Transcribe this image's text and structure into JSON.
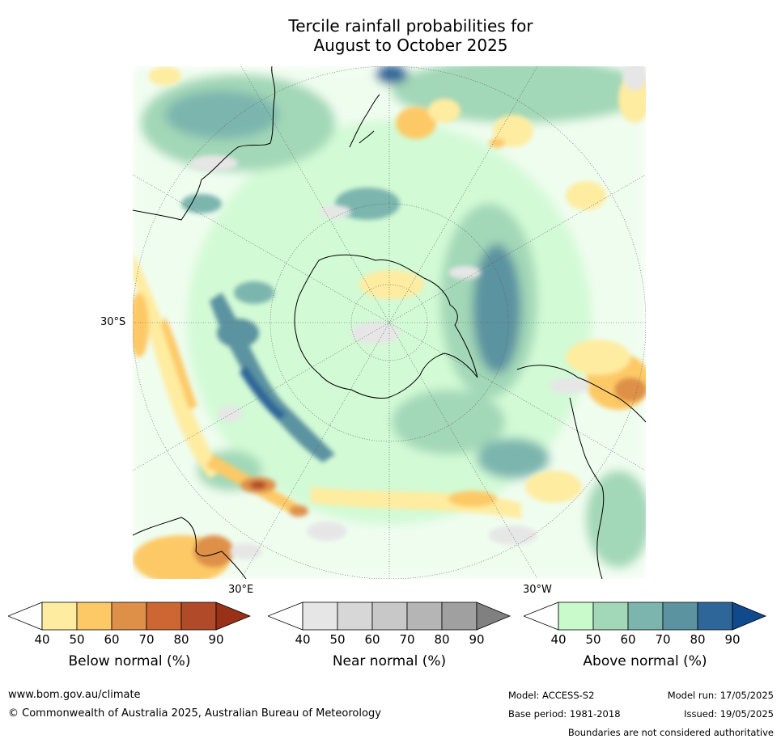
{
  "title": {
    "line1": "Tercile rainfall probabilities for",
    "line2": "August to October 2025"
  },
  "map": {
    "projection": "south-polar-stereographic",
    "lat_label": "30°S",
    "lon_labels": {
      "east": "30°E",
      "west": "30°W"
    }
  },
  "colorbars": [
    {
      "name": "below",
      "label": "Below normal (%)",
      "ticks": [
        "40",
        "50",
        "60",
        "70",
        "80",
        "90"
      ],
      "colors": [
        "#ffffff",
        "#feeca0",
        "#fdc966",
        "#de9048",
        "#cc6633",
        "#b04a29",
        "#993018"
      ]
    },
    {
      "name": "near",
      "label": "Near normal (%)",
      "ticks": [
        "40",
        "50",
        "60",
        "70",
        "80",
        "90"
      ],
      "colors": [
        "#ffffff",
        "#e6e6e6",
        "#d7d7d7",
        "#c8c8c8",
        "#b5b5b5",
        "#a0a0a0",
        "#808080"
      ]
    },
    {
      "name": "above",
      "label": "Above normal (%)",
      "ticks": [
        "40",
        "50",
        "60",
        "70",
        "80",
        "90"
      ],
      "colors": [
        "#ffffff",
        "#c8facc",
        "#a2d7b7",
        "#7cb5ae",
        "#5b93a0",
        "#2f6699",
        "#104a8c"
      ]
    }
  ],
  "footer": {
    "website": "www.bom.gov.au/climate",
    "copyright": "© Commonwealth of Australia 2025, Australian Bureau of Meteorology",
    "model": "Model: ACCESS-S2",
    "base_period": "Base period: 1981-2018",
    "model_run": "Model run: 17/05/2025",
    "issued": "Issued: 19/05/2025",
    "disclaimer": "Boundaries are not considered authoritative"
  }
}
